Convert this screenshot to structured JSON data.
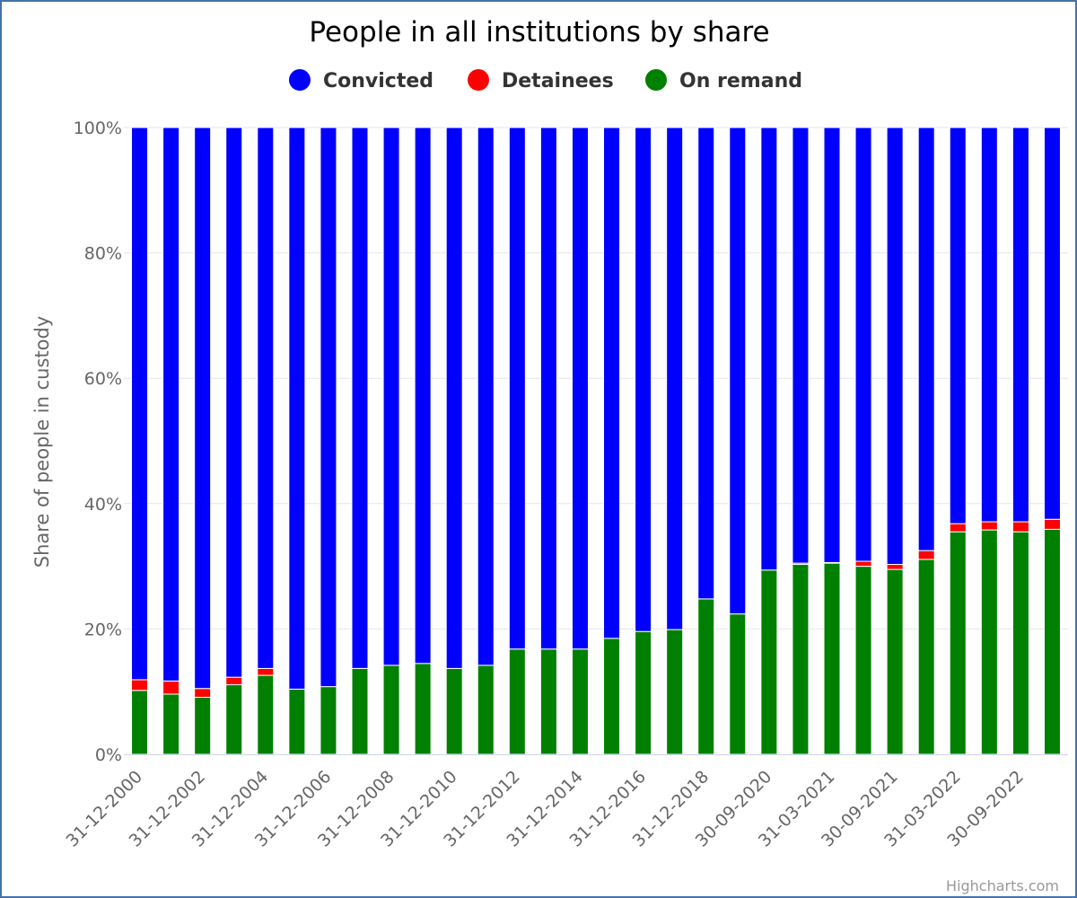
{
  "chart_data": {
    "type": "bar",
    "stacking": "percent",
    "title": "People in all institutions by share",
    "ylabel": "Share of people in custody",
    "xlabel": "",
    "ylim": [
      0,
      100
    ],
    "yticks": [
      "0%",
      "20%",
      "40%",
      "60%",
      "80%",
      "100%"
    ],
    "grid": true,
    "legend_position": "top-center",
    "categories": [
      "31-12-2000",
      "31-12-2001",
      "31-12-2002",
      "31-12-2003",
      "31-12-2004",
      "31-12-2005",
      "31-12-2006",
      "31-12-2007",
      "31-12-2008",
      "31-12-2009",
      "31-12-2010",
      "31-12-2011",
      "31-12-2012",
      "31-12-2013",
      "31-12-2014",
      "31-12-2015",
      "31-12-2016",
      "31-12-2017",
      "31-12-2018",
      "31-12-2019",
      "30-09-2020",
      "31-12-2020",
      "31-03-2021",
      "30-06-2021",
      "30-09-2021",
      "31-12-2021",
      "31-03-2022",
      "30-06-2022",
      "30-09-2022",
      "31-12-2022"
    ],
    "shown_tick_labels": [
      "31-12-2000",
      "31-12-2002",
      "31-12-2004",
      "31-12-2006",
      "31-12-2008",
      "31-12-2010",
      "31-12-2012",
      "31-12-2014",
      "31-12-2016",
      "31-12-2018",
      "30-09-2020",
      "31-03-2021",
      "30-09-2021",
      "31-03-2022",
      "30-09-2022"
    ],
    "series": [
      {
        "name": "Convicted",
        "color": "#0000ff",
        "values": [
          88.1,
          88.3,
          89.5,
          87.7,
          86.3,
          89.6,
          89.2,
          86.3,
          85.8,
          85.5,
          86.3,
          85.8,
          83.2,
          83.2,
          83.2,
          81.5,
          80.4,
          80.1,
          75.2,
          77.6,
          70.6,
          69.5,
          69.4,
          69.2,
          69.7,
          67.5,
          63.2,
          62.9,
          62.9,
          62.5
        ]
      },
      {
        "name": "Detainees",
        "color": "#ff0000",
        "values": [
          1.7,
          2.1,
          1.4,
          1.2,
          1.1,
          0,
          0,
          0,
          0,
          0,
          0,
          0,
          0,
          0,
          0,
          0,
          0,
          0,
          0,
          0,
          0,
          0.2,
          0.1,
          0.8,
          0.8,
          1.4,
          1.3,
          1.3,
          1.6,
          1.6
        ]
      },
      {
        "name": "On remand",
        "color": "#008000",
        "values": [
          10.2,
          9.6,
          9.1,
          11.1,
          12.6,
          10.4,
          10.8,
          13.7,
          14.2,
          14.5,
          13.7,
          14.2,
          16.8,
          16.8,
          16.8,
          18.5,
          19.6,
          19.9,
          24.8,
          22.4,
          29.4,
          30.3,
          30.5,
          30.0,
          29.5,
          31.1,
          35.5,
          35.8,
          35.5,
          35.9
        ]
      }
    ]
  },
  "credits": "Highcharts.com"
}
